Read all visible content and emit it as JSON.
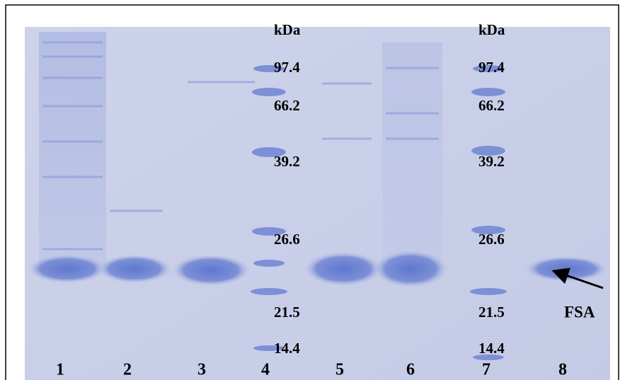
{
  "gel": {
    "marker_sets": [
      {
        "unit": "kDa",
        "labels": [
          "97.4",
          "66.2",
          "39.2",
          "26.6",
          "21.5",
          "14.4"
        ]
      },
      {
        "unit": "kDa",
        "labels": [
          "97.4",
          "66.2",
          "39.2",
          "26.6",
          "21.5",
          "14.4"
        ]
      }
    ],
    "lanes": [
      "1",
      "2",
      "3",
      "4",
      "5",
      "6",
      "7",
      "8"
    ],
    "annotation": "FSA"
  }
}
